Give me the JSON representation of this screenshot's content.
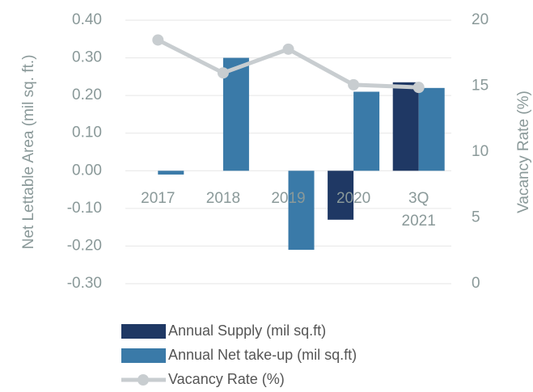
{
  "chart_data": {
    "type": "bar",
    "y_label": "Net Lettable Area (mil sq. ft.)",
    "y2_label": "Vacancy Rate (%)",
    "categories": [
      "2017",
      "2018",
      "2019",
      "2020",
      "3Q 2021"
    ],
    "series": [
      {
        "name": "Annual Supply (mil sq.ft)",
        "color": "#1f3864",
        "values": [
          0,
          0,
          0,
          -0.13,
          0.235
        ]
      },
      {
        "name": "Annual Net take-up (mil sq.ft)",
        "color": "#3a7aa8",
        "values": [
          -0.01,
          0.3,
          -0.21,
          0.21,
          0.22
        ]
      },
      {
        "name": "Vacancy Rate (%)",
        "color": "#c8cdd0",
        "type": "line",
        "axis": "y2",
        "values": [
          18.5,
          16.0,
          17.8,
          15.1,
          14.9
        ]
      }
    ],
    "ylim": [
      -0.3,
      0.4
    ],
    "yticks": [
      {
        "value": -0.3,
        "label": "-0.30"
      },
      {
        "value": -0.2,
        "label": "-0.20"
      },
      {
        "value": -0.1,
        "label": "-0.10"
      },
      {
        "value": 0,
        "label": "0.00"
      },
      {
        "value": 0.1,
        "label": "0.10"
      },
      {
        "value": 0.2,
        "label": "0.20"
      },
      {
        "value": 0.3,
        "label": "0.30"
      },
      {
        "value": 0.4,
        "label": "0.40"
      }
    ],
    "y2lim": [
      0,
      20
    ],
    "y2ticks": [
      0,
      5,
      10,
      15,
      20
    ],
    "grid": true
  }
}
